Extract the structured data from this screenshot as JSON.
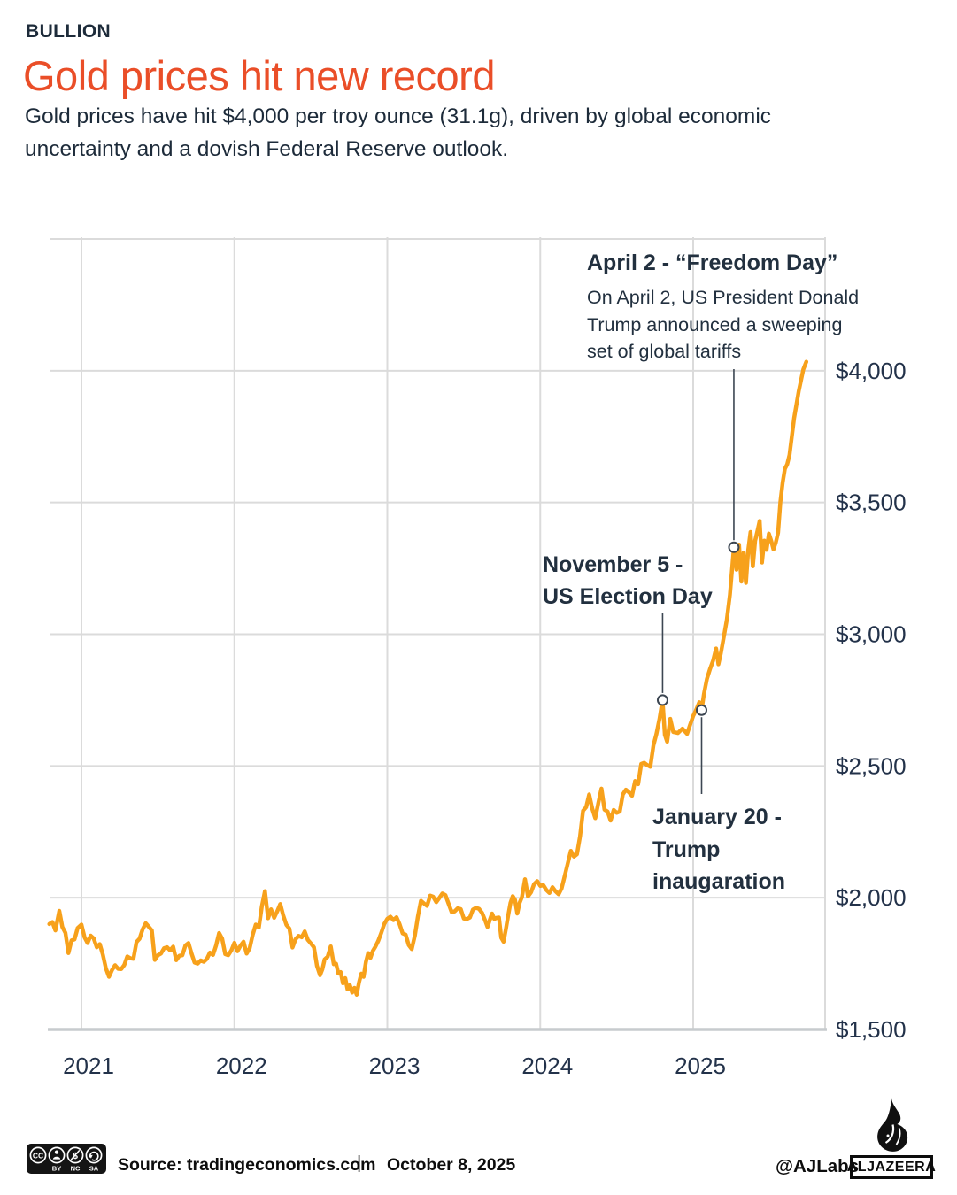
{
  "header": {
    "kicker": "BULLION",
    "title": "Gold prices hit new record",
    "dek": "Gold prices have hit $4,000 per troy ounce (31.1g), driven by global economic uncertainty and a dovish Federal Reserve outlook."
  },
  "chart_data": {
    "type": "line",
    "title": "",
    "xlabel": "",
    "ylabel": "",
    "ylim": [
      1500,
      4500
    ],
    "xlim": [
      2020.79,
      2025.86
    ],
    "grid": true,
    "legend_position": "none",
    "colors": {
      "line": "#F7A11B",
      "grid": "#DBDBDB",
      "axis": "#C7CBCE",
      "tick_text": "#23324A",
      "leader": "#3C4652",
      "accent": "#EA4E28"
    },
    "x_ticks": [
      {
        "label": "2021",
        "value": 2021
      },
      {
        "label": "2022",
        "value": 2022
      },
      {
        "label": "2023",
        "value": 2023
      },
      {
        "label": "2024",
        "value": 2024
      },
      {
        "label": "2025",
        "value": 2025
      }
    ],
    "y_ticks": [
      {
        "label": "$4,000",
        "value": 4000
      },
      {
        "label": "$3,500",
        "value": 3500
      },
      {
        "label": "$3,000",
        "value": 3000
      },
      {
        "label": "$2,500",
        "value": 2500
      },
      {
        "label": "$2,000",
        "value": 2000
      },
      {
        "label": "$1,500",
        "value": 1500
      }
    ],
    "series": [
      {
        "name": "Gold price (USD per troy ounce)",
        "points": [
          [
            2020.79,
            1900
          ],
          [
            2020.81,
            1908
          ],
          [
            2020.83,
            1876
          ],
          [
            2020.855,
            1950
          ],
          [
            2020.875,
            1889
          ],
          [
            2020.895,
            1867
          ],
          [
            2020.915,
            1790
          ],
          [
            2020.935,
            1838
          ],
          [
            2020.955,
            1842
          ],
          [
            2020.975,
            1885
          ],
          [
            2021.0,
            1898
          ],
          [
            2021.02,
            1850
          ],
          [
            2021.04,
            1828
          ],
          [
            2021.06,
            1856
          ],
          [
            2021.08,
            1846
          ],
          [
            2021.1,
            1812
          ],
          [
            2021.12,
            1824
          ],
          [
            2021.14,
            1784
          ],
          [
            2021.16,
            1732
          ],
          [
            2021.18,
            1700
          ],
          [
            2021.2,
            1726
          ],
          [
            2021.22,
            1744
          ],
          [
            2021.24,
            1730
          ],
          [
            2021.26,
            1729
          ],
          [
            2021.28,
            1745
          ],
          [
            2021.3,
            1777
          ],
          [
            2021.32,
            1770
          ],
          [
            2021.34,
            1768
          ],
          [
            2021.36,
            1832
          ],
          [
            2021.38,
            1844
          ],
          [
            2021.4,
            1880
          ],
          [
            2021.42,
            1903
          ],
          [
            2021.44,
            1890
          ],
          [
            2021.46,
            1876
          ],
          [
            2021.48,
            1764
          ],
          [
            2021.5,
            1782
          ],
          [
            2021.52,
            1788
          ],
          [
            2021.54,
            1808
          ],
          [
            2021.56,
            1812
          ],
          [
            2021.58,
            1800
          ],
          [
            2021.6,
            1814
          ],
          [
            2021.62,
            1763
          ],
          [
            2021.64,
            1780
          ],
          [
            2021.66,
            1782
          ],
          [
            2021.68,
            1819
          ],
          [
            2021.7,
            1828
          ],
          [
            2021.72,
            1788
          ],
          [
            2021.74,
            1754
          ],
          [
            2021.76,
            1750
          ],
          [
            2021.78,
            1762
          ],
          [
            2021.8,
            1757
          ],
          [
            2021.82,
            1768
          ],
          [
            2021.84,
            1792
          ],
          [
            2021.86,
            1783
          ],
          [
            2021.88,
            1818
          ],
          [
            2021.9,
            1866
          ],
          [
            2021.92,
            1845
          ],
          [
            2021.94,
            1786
          ],
          [
            2021.96,
            1782
          ],
          [
            2021.98,
            1800
          ],
          [
            2022.0,
            1829
          ],
          [
            2022.02,
            1797
          ],
          [
            2022.04,
            1818
          ],
          [
            2022.06,
            1833
          ],
          [
            2022.08,
            1788
          ],
          [
            2022.1,
            1808
          ],
          [
            2022.12,
            1860
          ],
          [
            2022.14,
            1898
          ],
          [
            2022.16,
            1887
          ],
          [
            2022.18,
            1968
          ],
          [
            2022.2,
            2025
          ],
          [
            2022.22,
            1922
          ],
          [
            2022.24,
            1956
          ],
          [
            2022.26,
            1924
          ],
          [
            2022.28,
            1948
          ],
          [
            2022.3,
            1976
          ],
          [
            2022.32,
            1932
          ],
          [
            2022.34,
            1897
          ],
          [
            2022.36,
            1883
          ],
          [
            2022.38,
            1811
          ],
          [
            2022.4,
            1843
          ],
          [
            2022.42,
            1855
          ],
          [
            2022.44,
            1850
          ],
          [
            2022.46,
            1872
          ],
          [
            2022.48,
            1840
          ],
          [
            2022.5,
            1827
          ],
          [
            2022.52,
            1812
          ],
          [
            2022.54,
            1742
          ],
          [
            2022.56,
            1706
          ],
          [
            2022.575,
            1728
          ],
          [
            2022.59,
            1766
          ],
          [
            2022.61,
            1776
          ],
          [
            2022.63,
            1815
          ],
          [
            2022.65,
            1748
          ],
          [
            2022.665,
            1750
          ],
          [
            2022.68,
            1712
          ],
          [
            2022.695,
            1718
          ],
          [
            2022.71,
            1675
          ],
          [
            2022.725,
            1695
          ],
          [
            2022.74,
            1652
          ],
          [
            2022.755,
            1668
          ],
          [
            2022.77,
            1640
          ],
          [
            2022.785,
            1658
          ],
          [
            2022.8,
            1632
          ],
          [
            2022.815,
            1678
          ],
          [
            2022.83,
            1712
          ],
          [
            2022.845,
            1700
          ],
          [
            2022.86,
            1756
          ],
          [
            2022.875,
            1790
          ],
          [
            2022.89,
            1772
          ],
          [
            2022.905,
            1798
          ],
          [
            2022.92,
            1812
          ],
          [
            2022.94,
            1835
          ],
          [
            2022.96,
            1866
          ],
          [
            2022.98,
            1900
          ],
          [
            2023.0,
            1920
          ],
          [
            2023.02,
            1928
          ],
          [
            2023.04,
            1915
          ],
          [
            2023.06,
            1926
          ],
          [
            2023.08,
            1900
          ],
          [
            2023.1,
            1865
          ],
          [
            2023.12,
            1860
          ],
          [
            2023.14,
            1820
          ],
          [
            2023.16,
            1805
          ],
          [
            2023.18,
            1856
          ],
          [
            2023.2,
            1930
          ],
          [
            2023.22,
            1988
          ],
          [
            2023.24,
            1978
          ],
          [
            2023.26,
            1969
          ],
          [
            2023.28,
            2008
          ],
          [
            2023.3,
            2004
          ],
          [
            2023.32,
            1983
          ],
          [
            2023.34,
            1999
          ],
          [
            2023.36,
            2016
          ],
          [
            2023.38,
            2010
          ],
          [
            2023.4,
            1978
          ],
          [
            2023.42,
            1946
          ],
          [
            2023.44,
            1948
          ],
          [
            2023.46,
            1960
          ],
          [
            2023.48,
            1957
          ],
          [
            2023.5,
            1921
          ],
          [
            2023.52,
            1919
          ],
          [
            2023.54,
            1925
          ],
          [
            2023.56,
            1955
          ],
          [
            2023.58,
            1962
          ],
          [
            2023.6,
            1958
          ],
          [
            2023.62,
            1942
          ],
          [
            2023.64,
            1913
          ],
          [
            2023.655,
            1889
          ],
          [
            2023.67,
            1915
          ],
          [
            2023.685,
            1940
          ],
          [
            2023.7,
            1919
          ],
          [
            2023.715,
            1924
          ],
          [
            2023.73,
            1925
          ],
          [
            2023.745,
            1848
          ],
          [
            2023.76,
            1833
          ],
          [
            2023.775,
            1880
          ],
          [
            2023.79,
            1932
          ],
          [
            2023.805,
            1980
          ],
          [
            2023.82,
            2006
          ],
          [
            2023.835,
            1992
          ],
          [
            2023.85,
            1940
          ],
          [
            2023.865,
            1980
          ],
          [
            2023.88,
            2002
          ],
          [
            2023.9,
            2070
          ],
          [
            2023.92,
            2005
          ],
          [
            2023.94,
            2021
          ],
          [
            2023.96,
            2052
          ],
          [
            2023.98,
            2063
          ],
          [
            2024.0,
            2045
          ],
          [
            2024.02,
            2048
          ],
          [
            2024.04,
            2029
          ],
          [
            2024.06,
            2018
          ],
          [
            2024.08,
            2040
          ],
          [
            2024.1,
            2024
          ],
          [
            2024.12,
            2013
          ],
          [
            2024.14,
            2036
          ],
          [
            2024.16,
            2083
          ],
          [
            2024.18,
            2130
          ],
          [
            2024.2,
            2178
          ],
          [
            2024.22,
            2156
          ],
          [
            2024.24,
            2165
          ],
          [
            2024.26,
            2233
          ],
          [
            2024.28,
            2330
          ],
          [
            2024.3,
            2344
          ],
          [
            2024.32,
            2392
          ],
          [
            2024.34,
            2338
          ],
          [
            2024.36,
            2302
          ],
          [
            2024.38,
            2360
          ],
          [
            2024.4,
            2414
          ],
          [
            2024.42,
            2334
          ],
          [
            2024.44,
            2327
          ],
          [
            2024.46,
            2293
          ],
          [
            2024.48,
            2333
          ],
          [
            2024.5,
            2322
          ],
          [
            2024.52,
            2327
          ],
          [
            2024.54,
            2392
          ],
          [
            2024.56,
            2410
          ],
          [
            2024.58,
            2400
          ],
          [
            2024.6,
            2387
          ],
          [
            2024.62,
            2443
          ],
          [
            2024.64,
            2431
          ],
          [
            2024.66,
            2508
          ],
          [
            2024.68,
            2512
          ],
          [
            2024.7,
            2503
          ],
          [
            2024.72,
            2497
          ],
          [
            2024.74,
            2578
          ],
          [
            2024.76,
            2622
          ],
          [
            2024.78,
            2680
          ],
          [
            2024.8,
            2750
          ],
          [
            2024.815,
            2618
          ],
          [
            2024.83,
            2592
          ],
          [
            2024.85,
            2679
          ],
          [
            2024.87,
            2629
          ],
          [
            2024.9,
            2625
          ],
          [
            2024.93,
            2642
          ],
          [
            2024.96,
            2622
          ],
          [
            2024.98,
            2656
          ],
          [
            2025.0,
            2690
          ],
          [
            2025.02,
            2714
          ],
          [
            2025.04,
            2742
          ],
          [
            2025.055,
            2712
          ],
          [
            2025.07,
            2772
          ],
          [
            2025.09,
            2830
          ],
          [
            2025.11,
            2868
          ],
          [
            2025.13,
            2900
          ],
          [
            2025.15,
            2946
          ],
          [
            2025.165,
            2886
          ],
          [
            2025.18,
            2925
          ],
          [
            2025.2,
            2990
          ],
          [
            2025.22,
            3055
          ],
          [
            2025.24,
            3150
          ],
          [
            2025.266,
            3330
          ],
          [
            2025.283,
            3245
          ],
          [
            2025.3,
            3340
          ],
          [
            2025.315,
            3200
          ],
          [
            2025.33,
            3310
          ],
          [
            2025.345,
            3195
          ],
          [
            2025.36,
            3320
          ],
          [
            2025.375,
            3388
          ],
          [
            2025.39,
            3258
          ],
          [
            2025.405,
            3355
          ],
          [
            2025.42,
            3392
          ],
          [
            2025.435,
            3430
          ],
          [
            2025.45,
            3272
          ],
          [
            2025.465,
            3355
          ],
          [
            2025.48,
            3320
          ],
          [
            2025.495,
            3382
          ],
          [
            2025.51,
            3355
          ],
          [
            2025.525,
            3322
          ],
          [
            2025.54,
            3348
          ],
          [
            2025.555,
            3385
          ],
          [
            2025.57,
            3502
          ],
          [
            2025.585,
            3576
          ],
          [
            2025.6,
            3628
          ],
          [
            2025.615,
            3645
          ],
          [
            2025.63,
            3680
          ],
          [
            2025.66,
            3820
          ],
          [
            2025.69,
            3922
          ],
          [
            2025.72,
            4005
          ],
          [
            2025.74,
            4034
          ]
        ]
      }
    ],
    "annotations": [
      {
        "id": "nov5",
        "lines": [
          "November 5 -",
          "US Election Day"
        ],
        "x": 2024.8,
        "price": 2750
      },
      {
        "id": "jan20",
        "lines": [
          "January 20 -",
          "Trump",
          "inaugaration"
        ],
        "x": 2025.055,
        "price": 2712
      },
      {
        "id": "april2",
        "title": "April 2 - “Freedom Day”",
        "lines": [
          "On April 2, US President Donald",
          "Trump announced a sweeping",
          "set of  global tariffs"
        ],
        "x": 2025.266,
        "price": 3330
      }
    ]
  },
  "footer": {
    "license": {
      "monogram": "CC",
      "labels": [
        "BY",
        "NC",
        "SA"
      ]
    },
    "source": "Source: tradingeconomics.com",
    "separator": "|",
    "date": "October 8, 2025",
    "credit": "@AJLabs",
    "brand": "ALJAZEERA"
  }
}
